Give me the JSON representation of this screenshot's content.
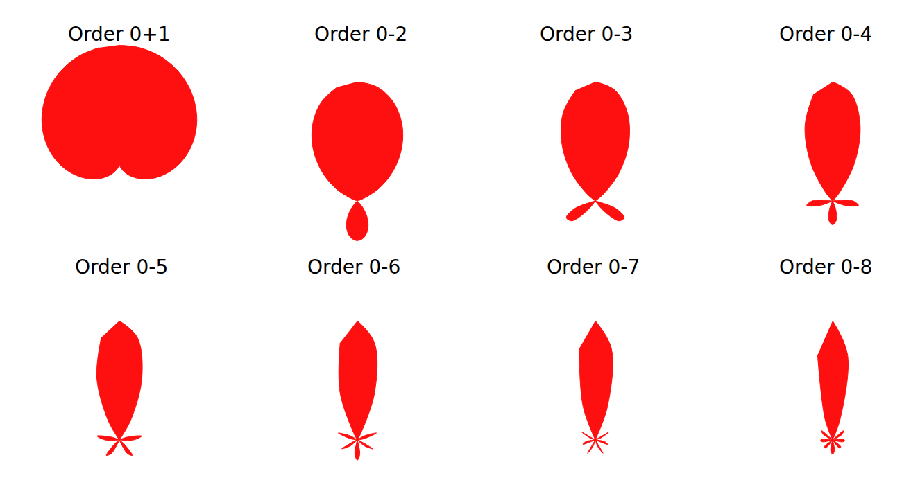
{
  "chart_data": [
    {
      "type": "polar",
      "title": "Order 0+1",
      "color": "#ff1010",
      "rlim": [
        0,
        1
      ],
      "tick_labels": false,
      "grid": false,
      "theta": [
        0,
        10,
        20,
        30,
        40,
        50,
        60,
        70,
        80,
        90,
        100,
        110,
        120,
        130,
        140,
        150,
        160,
        170,
        180,
        190,
        200,
        210,
        220,
        230,
        240,
        250,
        260,
        270,
        280,
        290,
        300,
        310,
        320,
        330,
        340,
        350
      ],
      "values": [
        1,
        0.992,
        0.97,
        0.933,
        0.883,
        0.821,
        0.75,
        0.671,
        0.587,
        0.5,
        0.413,
        0.329,
        0.25,
        0.179,
        0.117,
        0.067,
        0.03,
        0.008,
        0,
        0.008,
        0.03,
        0.067,
        0.117,
        0.179,
        0.25,
        0.329,
        0.413,
        0.5,
        0.587,
        0.671,
        0.75,
        0.821,
        0.883,
        0.933,
        0.97,
        0.992
      ]
    },
    {
      "type": "polar",
      "title": "Order 0-2",
      "color": "#ff1010",
      "rlim": [
        0,
        1
      ],
      "tick_labels": false,
      "grid": false,
      "theta": [
        0,
        10,
        20,
        30,
        40,
        50,
        60,
        70,
        80,
        90,
        100,
        110,
        120,
        130,
        140,
        150,
        160,
        170,
        180,
        190,
        200,
        210,
        220,
        230,
        240,
        250,
        260,
        270,
        280,
        290,
        300,
        310,
        320,
        330,
        340,
        350
      ],
      "values": [
        1,
        0.97,
        0.882,
        0.747,
        0.578,
        0.392,
        0.208,
        0.045,
        0,
        0,
        0,
        0,
        0,
        0,
        0.067,
        0.17,
        0.256,
        0.313,
        0.333,
        0.313,
        0.256,
        0.17,
        0.067,
        0,
        0,
        0,
        0,
        0,
        0,
        0.045,
        0.208,
        0.392,
        0.578,
        0.747,
        0.882,
        0.97
      ]
    },
    {
      "type": "polar",
      "title": "Order 0-3",
      "color": "#ff1010",
      "rlim": [
        0,
        1
      ],
      "tick_labels": false,
      "grid": false,
      "theta": [
        0,
        10,
        20,
        30,
        40,
        50,
        60,
        70,
        80,
        90,
        100,
        110,
        120,
        130,
        140,
        150,
        160,
        170,
        180,
        190,
        200,
        210,
        220,
        230,
        240,
        250,
        260,
        270,
        280,
        290,
        300,
        310,
        320,
        330,
        340,
        350
      ],
      "values": [
        1,
        0.944,
        0.787,
        0.562,
        0.314,
        0.089,
        0,
        0,
        0,
        0,
        0,
        0.18,
        0.28,
        0.26,
        0.11,
        0,
        0,
        0,
        0,
        0,
        0,
        0,
        0.11,
        0.26,
        0.28,
        0.18,
        0,
        0,
        0,
        0,
        0,
        0.089,
        0.314,
        0.562,
        0.787,
        0.944
      ]
    },
    {
      "type": "polar",
      "title": "Order 0-4",
      "color": "#ff1010",
      "rlim": [
        0,
        1
      ],
      "tick_labels": false,
      "grid": false,
      "theta": [
        0,
        10,
        20,
        30,
        40,
        50,
        60,
        70,
        80,
        90,
        100,
        110,
        120,
        130,
        140,
        150,
        160,
        170,
        180,
        190,
        200,
        210,
        220,
        230,
        240,
        250,
        260,
        270,
        280,
        290,
        300,
        310,
        320,
        330,
        340,
        350
      ],
      "values": [
        1,
        0.911,
        0.675,
        0.368,
        0.086,
        0,
        0,
        0,
        0,
        0.17,
        0.22,
        0.11,
        0,
        0,
        0,
        0,
        0.08,
        0.17,
        0.2,
        0.17,
        0.08,
        0,
        0,
        0,
        0,
        0.11,
        0.22,
        0.17,
        0,
        0,
        0,
        0,
        0.086,
        0.368,
        0.675,
        0.911
      ]
    },
    {
      "type": "polar",
      "title": "Order 0-5",
      "color": "#ff1010",
      "rlim": [
        0,
        1
      ],
      "tick_labels": false,
      "grid": false,
      "theta": [
        0,
        10,
        20,
        30,
        40,
        50,
        60,
        70,
        80,
        90,
        100,
        110,
        120,
        130,
        140,
        150,
        160,
        170,
        180,
        190,
        200,
        210,
        220,
        230,
        240,
        250,
        260,
        270,
        280,
        290,
        300,
        310,
        320,
        330,
        340,
        350
      ],
      "values": [
        1,
        0.872,
        0.552,
        0.188,
        0,
        0,
        0,
        0.07,
        0.19,
        0.12,
        0,
        0,
        0,
        0.05,
        0.17,
        0.13,
        0,
        0,
        0,
        0,
        0,
        0.13,
        0.17,
        0.05,
        0,
        0,
        0,
        0.12,
        0.19,
        0.07,
        0,
        0,
        0,
        0.188,
        0.552,
        0.872
      ]
    },
    {
      "type": "polar",
      "title": "Order 0-6",
      "color": "#ff1010",
      "rlim": [
        0,
        1
      ],
      "tick_labels": false,
      "grid": false,
      "theta": [
        0,
        10,
        20,
        30,
        40,
        50,
        60,
        70,
        80,
        90,
        100,
        110,
        120,
        130,
        140,
        150,
        160,
        170,
        180,
        190,
        200,
        210,
        220,
        230,
        240,
        250,
        260,
        270,
        280,
        290,
        300,
        310,
        320,
        330,
        340,
        350
      ],
      "values": [
        1,
        0.828,
        0.424,
        0.039,
        0,
        0,
        0.07,
        0.17,
        0.06,
        0,
        0,
        0.02,
        0.15,
        0.08,
        0,
        0,
        0,
        0.12,
        0.17,
        0.12,
        0,
        0,
        0,
        0.08,
        0.15,
        0.02,
        0,
        0,
        0.06,
        0.17,
        0.07,
        0,
        0,
        0.039,
        0.424,
        0.828
      ]
    },
    {
      "type": "polar",
      "title": "Order 0-7",
      "color": "#ff1010",
      "rlim": [
        0,
        1
      ],
      "tick_labels": false,
      "grid": false,
      "theta": [
        0,
        10,
        20,
        30,
        40,
        50,
        60,
        70,
        80,
        90,
        100,
        110,
        120,
        130,
        140,
        150,
        160,
        170,
        180,
        190,
        200,
        210,
        220,
        230,
        240,
        250,
        260,
        270,
        280,
        290,
        300,
        310,
        320,
        330,
        340,
        350
      ],
      "values": [
        1,
        0.778,
        0.3,
        0,
        0,
        0,
        0.13,
        0.05,
        0,
        0,
        0.08,
        0.11,
        0,
        0,
        0,
        0.13,
        0.06,
        0,
        0,
        0,
        0.06,
        0.13,
        0,
        0,
        0,
        0.11,
        0.08,
        0,
        0,
        0.05,
        0.13,
        0,
        0,
        0,
        0.3,
        0.778
      ]
    },
    {
      "type": "polar",
      "title": "Order 0-8",
      "color": "#ff1010",
      "rlim": [
        0,
        1
      ],
      "tick_labels": false,
      "grid": false,
      "theta": [
        0,
        10,
        20,
        30,
        40,
        50,
        60,
        70,
        80,
        90,
        100,
        110,
        120,
        130,
        140,
        150,
        160,
        170,
        180,
        190,
        200,
        210,
        220,
        230,
        240,
        250,
        260,
        270,
        280,
        290,
        300,
        310,
        320,
        330,
        340,
        350
      ],
      "values": [
        1,
        0.724,
        0.184,
        0,
        0,
        0.12,
        0.09,
        0,
        0,
        0.1,
        0.09,
        0,
        0,
        0.09,
        0.09,
        0,
        0,
        0.09,
        0.12,
        0.09,
        0,
        0,
        0.09,
        0.09,
        0,
        0,
        0.09,
        0.1,
        0,
        0,
        0.09,
        0.12,
        0,
        0,
        0.184,
        0.724
      ]
    }
  ]
}
